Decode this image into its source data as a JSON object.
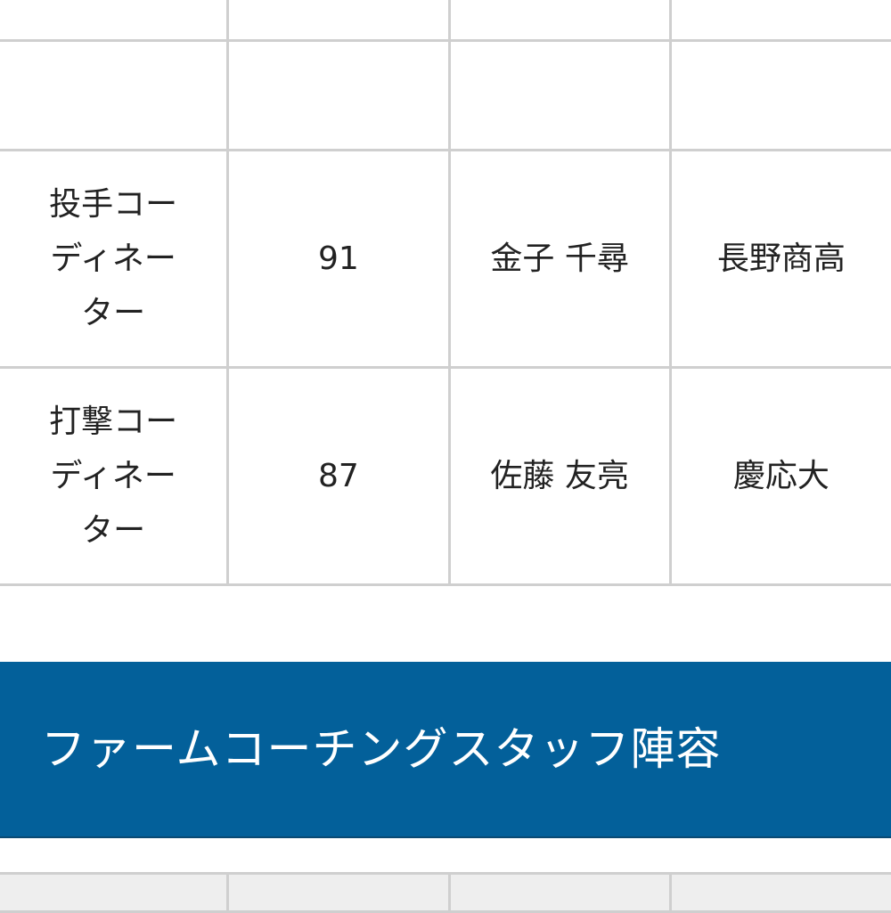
{
  "coaching_table": {
    "rows": [
      {
        "role": "",
        "number": "",
        "name": "",
        "school": ""
      },
      {
        "role": "",
        "number": "",
        "name": "",
        "school": ""
      },
      {
        "role": "投手コーディネーター",
        "number": "91",
        "name": "金子 千尋",
        "school": "長野商高"
      },
      {
        "role": "打撃コーディネーター",
        "number": "87",
        "name": "佐藤 友亮",
        "school": "慶応大"
      }
    ]
  },
  "farm_section": {
    "title": "ファームコーチングスタッフ陣容"
  },
  "colors": {
    "banner": "#03609a",
    "grid": "#cfcfcf"
  }
}
